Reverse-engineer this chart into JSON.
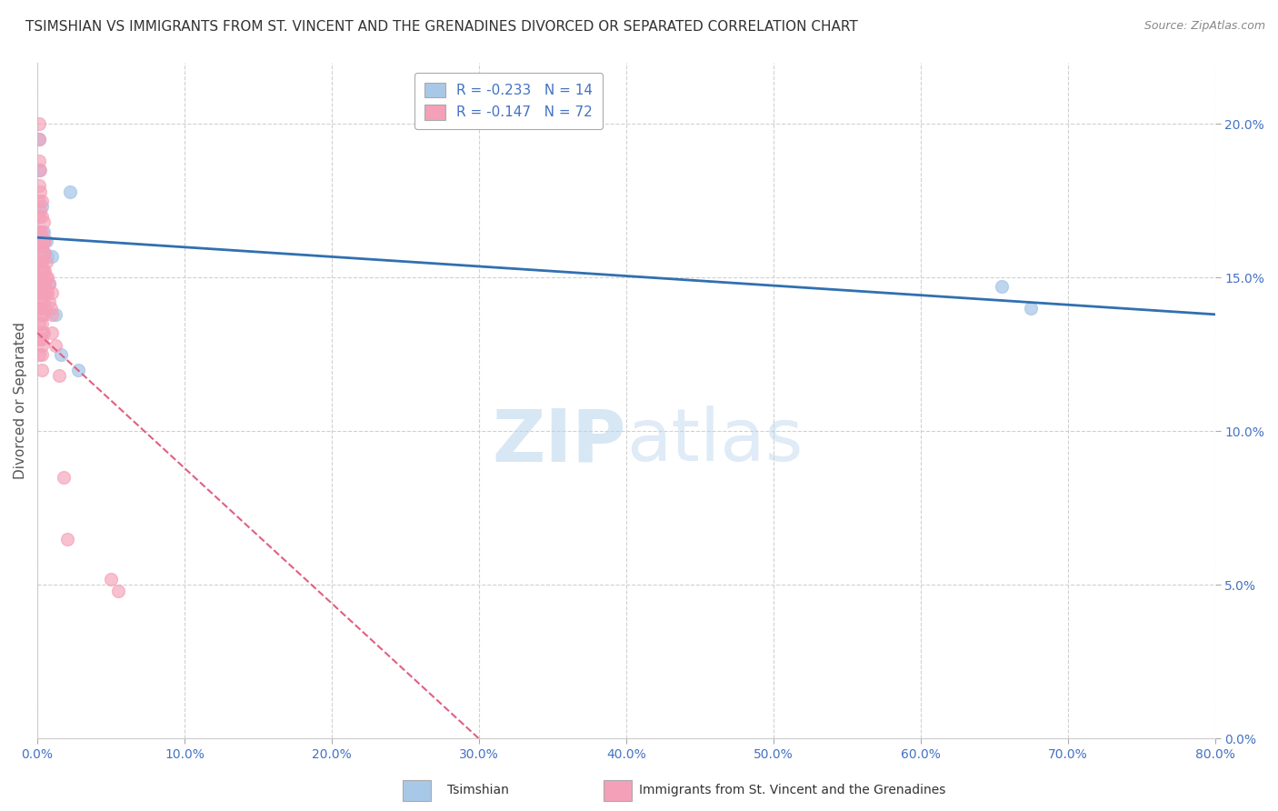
{
  "title": "TSIMSHIAN VS IMMIGRANTS FROM ST. VINCENT AND THE GRENADINES DIVORCED OR SEPARATED CORRELATION CHART",
  "source": "Source: ZipAtlas.com",
  "xlabel": "",
  "ylabel": "Divorced or Separated",
  "watermark_zip": "ZIP",
  "watermark_atlas": "atlas",
  "legend_blue_R": "R = -0.233",
  "legend_blue_N": "N = 14",
  "legend_pink_R": "R = -0.147",
  "legend_pink_N": "N = 72",
  "blue_color": "#A8C8E8",
  "pink_color": "#F4A0B8",
  "trend_blue_color": "#3070B0",
  "trend_pink_color": "#E06080",
  "xlim": [
    0,
    0.8
  ],
  "ylim": [
    0,
    0.22
  ],
  "xticks": [
    0.0,
    0.1,
    0.2,
    0.3,
    0.4,
    0.5,
    0.6,
    0.7,
    0.8
  ],
  "yticks": [
    0.0,
    0.05,
    0.1,
    0.15,
    0.2
  ],
  "blue_x": [
    0.001,
    0.001,
    0.003,
    0.004,
    0.006,
    0.007,
    0.008,
    0.01,
    0.012,
    0.016,
    0.022,
    0.028,
    0.655,
    0.675
  ],
  "blue_y": [
    0.195,
    0.185,
    0.173,
    0.165,
    0.162,
    0.157,
    0.148,
    0.157,
    0.138,
    0.125,
    0.178,
    0.12,
    0.147,
    0.14
  ],
  "pink_x": [
    0.001,
    0.001,
    0.001,
    0.001,
    0.001,
    0.001,
    0.001,
    0.001,
    0.001,
    0.001,
    0.001,
    0.001,
    0.001,
    0.001,
    0.001,
    0.002,
    0.002,
    0.002,
    0.002,
    0.002,
    0.002,
    0.002,
    0.002,
    0.002,
    0.003,
    0.003,
    0.003,
    0.003,
    0.003,
    0.003,
    0.003,
    0.003,
    0.003,
    0.003,
    0.003,
    0.003,
    0.003,
    0.003,
    0.003,
    0.003,
    0.004,
    0.004,
    0.004,
    0.004,
    0.004,
    0.004,
    0.004,
    0.004,
    0.004,
    0.005,
    0.005,
    0.005,
    0.005,
    0.005,
    0.005,
    0.006,
    0.006,
    0.006,
    0.007,
    0.007,
    0.008,
    0.008,
    0.009,
    0.01,
    0.01,
    0.01,
    0.012,
    0.015,
    0.018,
    0.02,
    0.05,
    0.055
  ],
  "pink_y": [
    0.2,
    0.195,
    0.188,
    0.18,
    0.175,
    0.17,
    0.165,
    0.16,
    0.155,
    0.15,
    0.145,
    0.14,
    0.135,
    0.13,
    0.125,
    0.185,
    0.178,
    0.172,
    0.165,
    0.16,
    0.155,
    0.15,
    0.145,
    0.14,
    0.175,
    0.17,
    0.165,
    0.16,
    0.155,
    0.152,
    0.148,
    0.145,
    0.142,
    0.138,
    0.135,
    0.132,
    0.13,
    0.128,
    0.125,
    0.12,
    0.168,
    0.162,
    0.158,
    0.152,
    0.148,
    0.145,
    0.142,
    0.138,
    0.132,
    0.162,
    0.158,
    0.152,
    0.148,
    0.145,
    0.14,
    0.155,
    0.15,
    0.145,
    0.15,
    0.145,
    0.148,
    0.142,
    0.14,
    0.145,
    0.138,
    0.132,
    0.128,
    0.118,
    0.085,
    0.065,
    0.052,
    0.048
  ],
  "blue_trend_x0": 0.0,
  "blue_trend_y0": 0.163,
  "blue_trend_x1": 0.8,
  "blue_trend_y1": 0.138,
  "pink_trend_x0": 0.0,
  "pink_trend_y0": 0.132,
  "pink_trend_x1": 0.3,
  "pink_trend_y1": 0.0,
  "background_color": "#FFFFFF",
  "grid_color": "#CCCCCC",
  "title_fontsize": 11,
  "axis_label_fontsize": 11,
  "tick_fontsize": 10,
  "legend_fontsize": 11
}
